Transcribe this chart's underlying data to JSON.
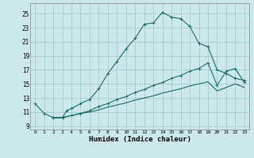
{
  "xlabel": "Humidex (Indice chaleur)",
  "background_color": "#cde8e8",
  "grid_color": "#a8cccc",
  "line_color": "#1a6b6b",
  "xlim": [
    -0.5,
    23.5
  ],
  "ylim": [
    8.5,
    26.5
  ],
  "xticks": [
    0,
    1,
    2,
    3,
    4,
    5,
    6,
    7,
    8,
    9,
    10,
    11,
    12,
    13,
    14,
    15,
    16,
    17,
    18,
    19,
    20,
    21,
    22,
    23
  ],
  "yticks": [
    9,
    11,
    13,
    15,
    17,
    19,
    21,
    23,
    25
  ],
  "curve1_x": [
    0,
    1,
    2,
    3,
    3.5,
    4,
    5,
    6,
    7,
    8,
    9,
    10,
    11,
    12,
    13,
    14,
    15,
    16,
    17,
    18,
    19,
    20,
    21,
    22,
    23
  ],
  "curve1_y": [
    12.2,
    10.8,
    10.2,
    10.2,
    11.2,
    11.5,
    12.2,
    12.8,
    14.3,
    16.5,
    18.2,
    20.0,
    21.5,
    23.5,
    23.7,
    25.2,
    24.5,
    24.3,
    23.2,
    20.8,
    20.3,
    17.0,
    16.5,
    15.8,
    15.5
  ],
  "curve2_x": [
    2,
    3,
    4,
    5,
    6,
    7,
    8,
    9,
    10,
    11,
    12,
    13,
    14,
    15,
    16,
    17,
    18,
    19,
    20,
    21,
    22,
    23
  ],
  "curve2_y": [
    10.2,
    10.2,
    10.5,
    10.8,
    11.2,
    11.8,
    12.2,
    12.8,
    13.2,
    13.8,
    14.2,
    14.8,
    15.2,
    15.8,
    16.2,
    16.8,
    17.2,
    18.0,
    14.8,
    16.8,
    17.2,
    15.2
  ],
  "curve3_x": [
    2,
    3,
    4,
    5,
    6,
    7,
    8,
    9,
    10,
    11,
    12,
    13,
    14,
    15,
    16,
    17,
    18,
    19,
    20,
    21,
    22,
    23
  ],
  "curve3_y": [
    10.2,
    10.2,
    10.5,
    10.8,
    11.0,
    11.3,
    11.7,
    12.0,
    12.3,
    12.7,
    13.0,
    13.3,
    13.7,
    14.0,
    14.3,
    14.7,
    15.0,
    15.3,
    14.0,
    14.5,
    15.0,
    14.5
  ]
}
